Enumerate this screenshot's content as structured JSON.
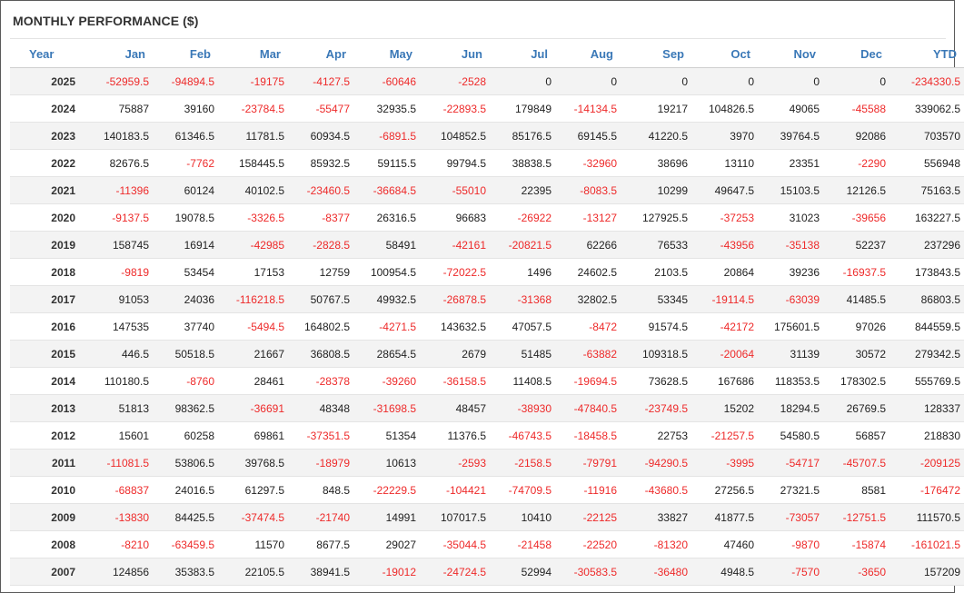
{
  "title": "MONTHLY PERFORMANCE ($)",
  "colors": {
    "header_text": "#3a78b7",
    "negative": "#ee2a2a",
    "positive": "#222222",
    "stripe": "#f3f3f3",
    "border": "#5a5a5a"
  },
  "columns": [
    "Year",
    "Jan",
    "Feb",
    "Mar",
    "Apr",
    "May",
    "Jun",
    "Jul",
    "Aug",
    "Sep",
    "Oct",
    "Nov",
    "Dec",
    "YTD"
  ],
  "rows": [
    [
      "2025",
      "-52959.5",
      "-94894.5",
      "-19175",
      "-4127.5",
      "-60646",
      "-2528",
      "0",
      "0",
      "0",
      "0",
      "0",
      "0",
      "-234330.5"
    ],
    [
      "2024",
      "75887",
      "39160",
      "-23784.5",
      "-55477",
      "32935.5",
      "-22893.5",
      "179849",
      "-14134.5",
      "19217",
      "104826.5",
      "49065",
      "-45588",
      "339062.5"
    ],
    [
      "2023",
      "140183.5",
      "61346.5",
      "11781.5",
      "60934.5",
      "-6891.5",
      "104852.5",
      "85176.5",
      "69145.5",
      "41220.5",
      "3970",
      "39764.5",
      "92086",
      "703570"
    ],
    [
      "2022",
      "82676.5",
      "-7762",
      "158445.5",
      "85932.5",
      "59115.5",
      "99794.5",
      "38838.5",
      "-32960",
      "38696",
      "13110",
      "23351",
      "-2290",
      "556948"
    ],
    [
      "2021",
      "-11396",
      "60124",
      "40102.5",
      "-23460.5",
      "-36684.5",
      "-55010",
      "22395",
      "-8083.5",
      "10299",
      "49647.5",
      "15103.5",
      "12126.5",
      "75163.5"
    ],
    [
      "2020",
      "-9137.5",
      "19078.5",
      "-3326.5",
      "-8377",
      "26316.5",
      "96683",
      "-26922",
      "-13127",
      "127925.5",
      "-37253",
      "31023",
      "-39656",
      "163227.5"
    ],
    [
      "2019",
      "158745",
      "16914",
      "-42985",
      "-2828.5",
      "58491",
      "-42161",
      "-20821.5",
      "62266",
      "76533",
      "-43956",
      "-35138",
      "52237",
      "237296"
    ],
    [
      "2018",
      "-9819",
      "53454",
      "17153",
      "12759",
      "100954.5",
      "-72022.5",
      "1496",
      "24602.5",
      "2103.5",
      "20864",
      "39236",
      "-16937.5",
      "173843.5"
    ],
    [
      "2017",
      "91053",
      "24036",
      "-116218.5",
      "50767.5",
      "49932.5",
      "-26878.5",
      "-31368",
      "32802.5",
      "53345",
      "-19114.5",
      "-63039",
      "41485.5",
      "86803.5"
    ],
    [
      "2016",
      "147535",
      "37740",
      "-5494.5",
      "164802.5",
      "-4271.5",
      "143632.5",
      "47057.5",
      "-8472",
      "91574.5",
      "-42172",
      "175601.5",
      "97026",
      "844559.5"
    ],
    [
      "2015",
      "446.5",
      "50518.5",
      "21667",
      "36808.5",
      "28654.5",
      "2679",
      "51485",
      "-63882",
      "109318.5",
      "-20064",
      "31139",
      "30572",
      "279342.5"
    ],
    [
      "2014",
      "110180.5",
      "-8760",
      "28461",
      "-28378",
      "-39260",
      "-36158.5",
      "11408.5",
      "-19694.5",
      "73628.5",
      "167686",
      "118353.5",
      "178302.5",
      "555769.5"
    ],
    [
      "2013",
      "51813",
      "98362.5",
      "-36691",
      "48348",
      "-31698.5",
      "48457",
      "-38930",
      "-47840.5",
      "-23749.5",
      "15202",
      "18294.5",
      "26769.5",
      "128337"
    ],
    [
      "2012",
      "15601",
      "60258",
      "69861",
      "-37351.5",
      "51354",
      "11376.5",
      "-46743.5",
      "-18458.5",
      "22753",
      "-21257.5",
      "54580.5",
      "56857",
      "218830"
    ],
    [
      "2011",
      "-11081.5",
      "53806.5",
      "39768.5",
      "-18979",
      "10613",
      "-2593",
      "-2158.5",
      "-79791",
      "-94290.5",
      "-3995",
      "-54717",
      "-45707.5",
      "-209125"
    ],
    [
      "2010",
      "-68837",
      "24016.5",
      "61297.5",
      "848.5",
      "-22229.5",
      "-104421",
      "-74709.5",
      "-11916",
      "-43680.5",
      "27256.5",
      "27321.5",
      "8581",
      "-176472"
    ],
    [
      "2009",
      "-13830",
      "84425.5",
      "-37474.5",
      "-21740",
      "14991",
      "107017.5",
      "10410",
      "-22125",
      "33827",
      "41877.5",
      "-73057",
      "-12751.5",
      "111570.5"
    ],
    [
      "2008",
      "-8210",
      "-63459.5",
      "11570",
      "8677.5",
      "29027",
      "-35044.5",
      "-21458",
      "-22520",
      "-81320",
      "47460",
      "-9870",
      "-15874",
      "-161021.5"
    ],
    [
      "2007",
      "124856",
      "35383.5",
      "22105.5",
      "38941.5",
      "-19012",
      "-24724.5",
      "52994",
      "-30583.5",
      "-36480",
      "4948.5",
      "-7570",
      "-3650",
      "157209"
    ]
  ]
}
